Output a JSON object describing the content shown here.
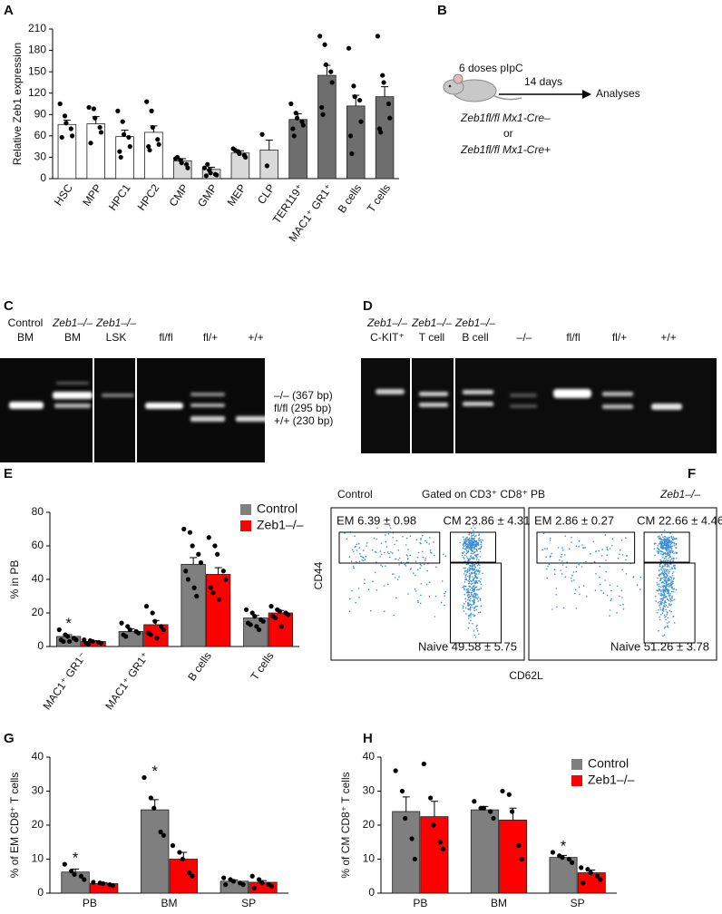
{
  "chart_data": [
    {
      "type": "bar",
      "panel": "A",
      "ylabel": "Relative Zeb1 expression",
      "categories": [
        "HSC",
        "MPP",
        "HPC1",
        "HPC2",
        "CMP",
        "GMP",
        "MEP",
        "CLP",
        "TER119⁺",
        "MAC1⁺ GR1⁺",
        "B cells",
        "T cells"
      ],
      "values": [
        76,
        77,
        59,
        65,
        25,
        13,
        36,
        40,
        83,
        145,
        102,
        115
      ],
      "errors": [
        6,
        10,
        9,
        9,
        3,
        3,
        3,
        14,
        8,
        14,
        15,
        14
      ],
      "colors": [
        "#ffffff",
        "#ffffff",
        "#ffffff",
        "#ffffff",
        "#d9d9d9",
        "#d9d9d9",
        "#d9d9d9",
        "#d9d9d9",
        "#6e6e6e",
        "#6e6e6e",
        "#6e6e6e",
        "#6e6e6e"
      ],
      "points": [
        [
          105,
          88,
          78,
          70,
          60,
          58
        ],
        [
          100,
          98,
          85,
          72,
          65,
          50
        ],
        [
          95,
          80,
          62,
          58,
          45,
          38,
          30
        ],
        [
          108,
          95,
          72,
          55,
          48,
          45,
          40
        ],
        [
          28,
          26,
          22,
          20,
          15,
          30
        ],
        [
          15,
          12,
          8,
          6,
          5,
          4,
          20
        ],
        [
          42,
          38,
          35,
          33,
          30,
          40
        ],
        [
          62,
          18
        ],
        [
          105,
          92,
          85,
          80,
          75,
          70,
          60
        ],
        [
          200,
          188,
          160,
          150,
          135,
          100,
          90
        ],
        [
          183,
          130,
          115,
          110,
          80,
          60,
          35
        ],
        [
          200,
          145,
          135,
          105,
          85,
          70,
          65
        ]
      ],
      "ylim": [
        0,
        210
      ],
      "yticks": [
        0,
        30,
        60,
        90,
        120,
        150,
        180,
        210
      ],
      "rotated_labels": true
    },
    {
      "type": "bar",
      "panel": "E",
      "ylabel": "% in PB",
      "categories": [
        "MAC1⁺ GR1⁻",
        "MAC1⁺ GR1⁺",
        "B cells",
        "T cells"
      ],
      "series": [
        {
          "name": "Control",
          "color": "#7f7f7f",
          "values": [
            6,
            9,
            49,
            17
          ],
          "errors": [
            1,
            1.5,
            4,
            1.5
          ],
          "significance": [
            "*",
            null,
            null,
            null
          ],
          "points": [
            [
              10,
              7,
              6,
              5,
              4,
              4,
              3,
              3
            ],
            [
              14,
              12,
              10,
              9,
              8,
              7,
              6
            ],
            [
              70,
              68,
              60,
              55,
              50,
              45,
              40,
              35,
              30
            ],
            [
              22,
              20,
              18,
              16,
              15,
              14,
              13,
              12,
              10
            ]
          ]
        },
        {
          "name": "Zeb1–/–",
          "color": "#ff0000",
          "values": [
            3,
            13,
            43,
            20
          ],
          "errors": [
            0.5,
            2.5,
            4,
            1.5
          ],
          "significance": [
            null,
            null,
            null,
            null
          ],
          "points": [
            [
              4,
              3.5,
              3,
              2.5,
              2,
              2,
              1.5
            ],
            [
              24,
              20,
              15,
              12,
              10,
              8,
              7,
              5
            ],
            [
              65,
              60,
              55,
              45,
              40,
              35,
              32,
              28
            ],
            [
              24,
              22,
              21,
              20,
              19,
              18,
              17,
              12
            ]
          ]
        }
      ],
      "ylim": [
        0,
        80
      ],
      "yticks": [
        0,
        20,
        40,
        60,
        80
      ],
      "rotated_labels": true,
      "legend": "top-right"
    },
    {
      "type": "bar",
      "panel": "G",
      "ylabel": "% of EM CD8⁺ T cells",
      "categories": [
        "PB",
        "BM",
        "SP"
      ],
      "series": [
        {
          "name": "Control",
          "color": "#7f7f7f",
          "values": [
            6.2,
            24.5,
            3.5
          ],
          "errors": [
            0.9,
            3,
            0.4
          ],
          "significance": [
            "*",
            "*",
            null
          ],
          "points": [
            [
              8.5,
              6.5,
              5.5,
              5,
              4
            ],
            [
              34,
              28,
              25,
              18,
              17
            ],
            [
              4.5,
              4,
              3.5,
              3,
              2.5,
              2.5
            ]
          ]
        },
        {
          "name": "Zeb1–/–",
          "color": "#ff0000",
          "values": [
            2.8,
            10,
            3.2
          ],
          "errors": [
            0.3,
            2,
            0.5
          ],
          "significance": [
            null,
            null,
            null
          ],
          "points": [
            [
              3.2,
              3,
              2.8,
              2.5,
              2.2
            ],
            [
              14,
              12,
              10,
              6,
              5
            ],
            [
              5,
              4,
              3,
              2.5,
              2,
              1.5
            ]
          ]
        }
      ],
      "ylim": [
        0,
        40
      ],
      "yticks": [
        0,
        10,
        20,
        30,
        40
      ],
      "rotated_labels": false
    },
    {
      "type": "bar",
      "panel": "H",
      "ylabel": "% of CM CD8⁺ T cells",
      "categories": [
        "PB",
        "BM",
        "SP"
      ],
      "series": [
        {
          "name": "Control",
          "color": "#7f7f7f",
          "values": [
            24,
            24.5,
            10.5
          ],
          "errors": [
            4.3,
            1,
            0.6
          ],
          "significance": [
            null,
            null,
            "*"
          ],
          "points": [
            [
              36,
              30,
              22,
              16,
              10
            ],
            [
              27,
              25,
              25,
              24,
              22
            ],
            [
              12,
              11,
              10.5,
              10,
              9
            ]
          ]
        },
        {
          "name": "Zeb1–/–",
          "color": "#ff0000",
          "values": [
            22.5,
            21.5,
            6
          ],
          "errors": [
            4.5,
            3.5,
            0.8
          ],
          "significance": [
            null,
            null,
            null
          ],
          "points": [
            [
              38,
              28,
              20,
              15,
              13
            ],
            [
              30,
              29,
              24,
              14,
              10
            ],
            [
              7.5,
              7,
              6,
              5,
              4,
              3
            ]
          ]
        }
      ],
      "ylim": [
        0,
        40
      ],
      "yticks": [
        0,
        10,
        20,
        30,
        40
      ],
      "rotated_labels": false,
      "legend": "top-right"
    }
  ],
  "diagram": {
    "panel": "B",
    "treatment": "6 doses pIpC",
    "interval": "14 days",
    "endpoint": "Analyses",
    "genotypes": [
      "Zeb1fl/fl Mx1-Cre–",
      "or",
      "Zeb1fl/fl Mx1-Cre+"
    ]
  },
  "gels": [
    {
      "panel": "C",
      "lanes": [
        [
          "Control",
          "BM"
        ],
        [
          "Zeb1–/–",
          "BM"
        ],
        [
          "Zeb1–/–",
          "LSK"
        ],
        [
          "fl/fl"
        ],
        [
          "fl/+"
        ],
        [
          "+/+"
        ]
      ],
      "band_labels": [
        "–/– (367 bp)",
        "fl/fl (295 bp)",
        "+/+ (230 bp)"
      ]
    },
    {
      "panel": "D",
      "lanes": [
        [
          "Zeb1–/–",
          "C-KIT⁺"
        ],
        [
          "Zeb1–/–",
          "T cell"
        ],
        [
          "Zeb1–/–",
          "B cell"
        ],
        [
          "–/–"
        ],
        [
          "fl/fl"
        ],
        [
          "fl/+"
        ],
        [
          "+/+"
        ]
      ]
    }
  ],
  "flow": {
    "panel": "F",
    "title_left": "Control",
    "title": "Gated on CD3⁺ CD8⁺ PB",
    "title_right": "Zeb1–/–",
    "plots": [
      {
        "em": "EM 6.39 ± 0.98",
        "cm": "CM 23.86 ± 4.31",
        "naive": "Naive 49.58 ± 5.75"
      },
      {
        "em": "EM 2.86 ± 0.27",
        "cm": "CM 22.66 ± 4.46",
        "naive": "Naive 51.26 ± 3.78"
      }
    ],
    "ylabel": "CD44",
    "xlabel": "CD62L"
  }
}
